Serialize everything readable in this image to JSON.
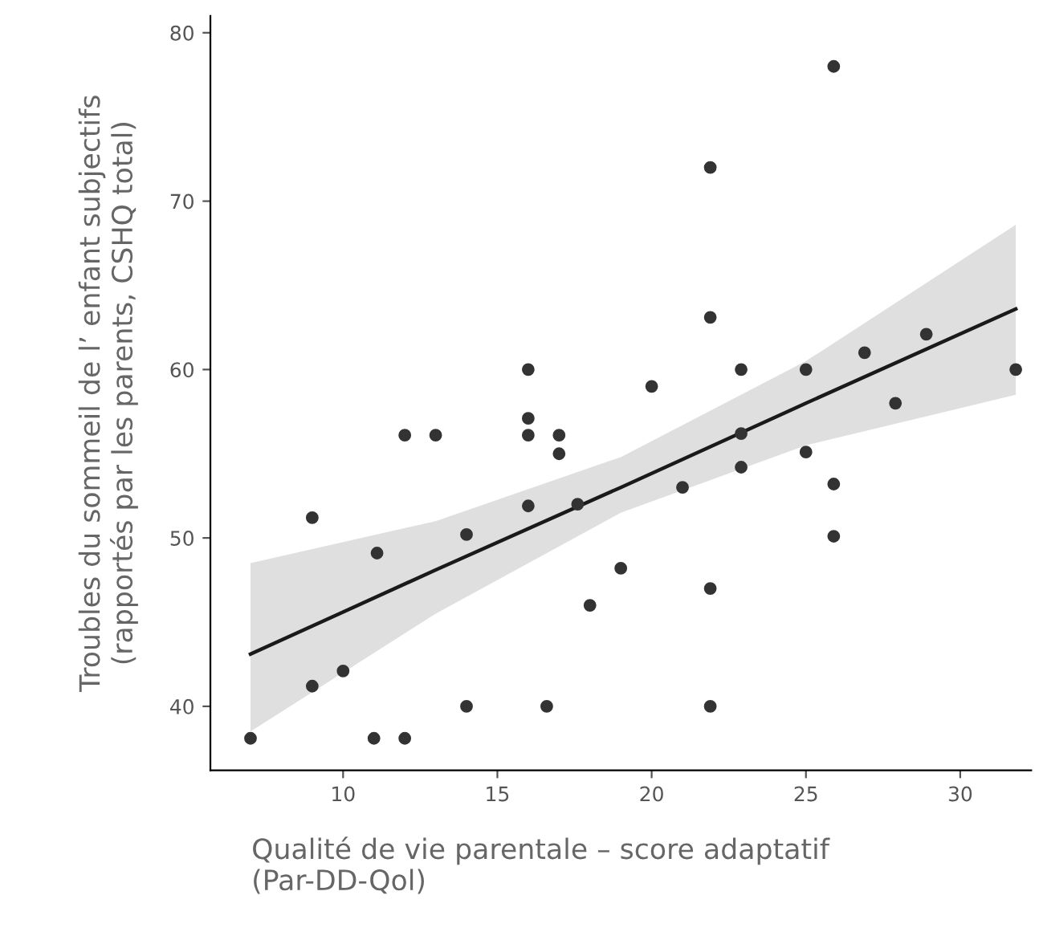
{
  "chart_data": {
    "type": "scatter",
    "xlabel": "Qualité de vie parentale – score adaptatif\n(Par-DD-Qol)",
    "ylabel": "Troubles du sommeil de l’ enfant subjectifs\n(rapportés par les parents, CSHQ total)",
    "xlim": [
      5.7,
      32.3
    ],
    "ylim": [
      36.2,
      81
    ],
    "xticks": [
      10,
      15,
      20,
      25,
      30
    ],
    "yticks": [
      40,
      50,
      60,
      70,
      80
    ],
    "grid": false,
    "legend": false,
    "marker": "circle",
    "series": [
      {
        "color": "#333333",
        "x": [
          7,
          9,
          9,
          10,
          11,
          11.1,
          12,
          12,
          13,
          14,
          14,
          16,
          16,
          16,
          16,
          17,
          17,
          16.6,
          18,
          17.6,
          19,
          20,
          21,
          21.9,
          21.9,
          21.9,
          21.9,
          22.9,
          22.9,
          22.9,
          25,
          25,
          25.9,
          25.9,
          25.9,
          26.9,
          27.9,
          28.9,
          31.8
        ],
        "values": [
          38.1,
          51.2,
          41.2,
          42.1,
          38.1,
          49.1,
          38.1,
          56.1,
          56.1,
          40,
          50.2,
          60,
          57.1,
          56.1,
          51.9,
          56.1,
          55,
          40,
          46,
          52,
          48.2,
          59,
          53,
          72,
          63.1,
          47,
          40,
          60,
          54.2,
          56.2,
          60,
          55.1,
          53.2,
          50.1,
          78,
          61,
          58,
          62.1,
          60
        ]
      },
      {
        "type": "line",
        "color": "#1a1a1a",
        "line_style": "solid",
        "marker": "none",
        "x": [
          7,
          13,
          19,
          25,
          31.8
        ],
        "values": [
          43.1,
          48.1,
          53.0,
          58.0,
          63.6
        ],
        "lower": [
          38.5,
          45.5,
          51.5,
          55.5,
          58.5
        ],
        "upper": [
          48.5,
          51.0,
          54.8,
          60.5,
          68.6
        ]
      }
    ]
  }
}
